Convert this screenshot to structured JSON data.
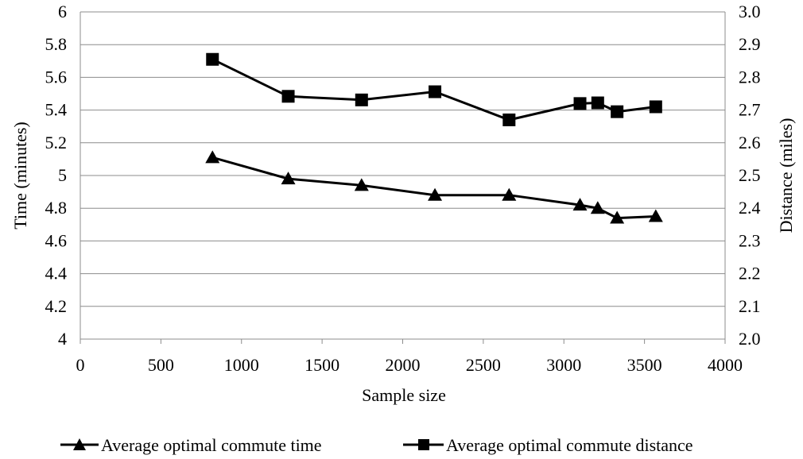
{
  "chart_data": {
    "type": "line",
    "title": "",
    "xlabel": "Sample size",
    "ylabel_left": "Time (minutes)",
    "ylabel_right": "Distance (miles)",
    "xlim": [
      0,
      4000
    ],
    "ylim_left": [
      4,
      6
    ],
    "ylim_right": [
      2.0,
      3.0
    ],
    "x_ticks": [
      "0",
      "500",
      "1000",
      "1500",
      "2000",
      "2500",
      "3000",
      "3500",
      "4000"
    ],
    "y_left_ticks": [
      "4",
      "4.2",
      "4.4",
      "4.6",
      "4.8",
      "5",
      "5.2",
      "5.4",
      "5.6",
      "5.8",
      "6"
    ],
    "y_right_ticks": [
      "2.0",
      "2.1",
      "2.2",
      "2.3",
      "2.4",
      "2.5",
      "2.6",
      "2.7",
      "2.8",
      "2.9",
      "3.0"
    ],
    "grid": "horizontal",
    "legend_position": "bottom",
    "series": [
      {
        "name": "Average optimal commute time",
        "axis": "left",
        "marker": "triangle",
        "color": "#000000",
        "x": [
          820,
          1290,
          1745,
          2200,
          2660,
          3100,
          3210,
          3330,
          3570
        ],
        "values": [
          5.11,
          4.98,
          4.94,
          4.88,
          4.88,
          4.82,
          4.8,
          4.74,
          4.75
        ]
      },
      {
        "name": "Average optimal commute distance",
        "axis": "right",
        "marker": "square",
        "color": "#000000",
        "x": [
          820,
          1290,
          1745,
          2200,
          2660,
          3100,
          3210,
          3330,
          3570
        ],
        "values": [
          2.855,
          2.742,
          2.731,
          2.756,
          2.67,
          2.72,
          2.722,
          2.695,
          2.71
        ]
      }
    ]
  }
}
